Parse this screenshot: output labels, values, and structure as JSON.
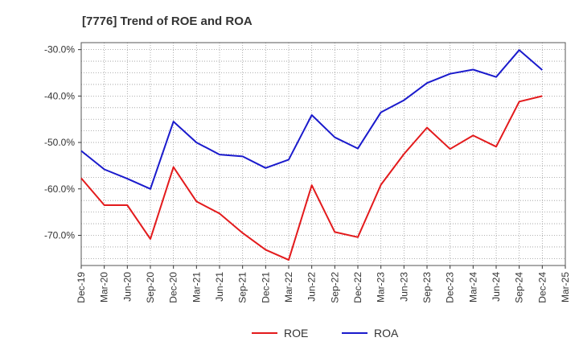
{
  "chart_data": {
    "type": "line",
    "title": "[7776]  Trend of ROE and ROA",
    "xlabel": "",
    "ylabel": "",
    "x": [
      "Dec-19",
      "Mar-20",
      "Jun-20",
      "Sep-20",
      "Dec-20",
      "Mar-21",
      "Jun-21",
      "Sep-21",
      "Dec-21",
      "Mar-22",
      "Jun-22",
      "Sep-22",
      "Dec-22",
      "Mar-23",
      "Jun-23",
      "Sep-23",
      "Dec-23",
      "Mar-24",
      "Jun-24",
      "Sep-24",
      "Dec-24"
    ],
    "x_ticks": [
      "Dec-19",
      "Mar-20",
      "Jun-20",
      "Sep-20",
      "Dec-20",
      "Mar-21",
      "Jun-21",
      "Sep-21",
      "Dec-21",
      "Mar-22",
      "Jun-22",
      "Sep-22",
      "Dec-22",
      "Mar-23",
      "Jun-23",
      "Sep-23",
      "Dec-23",
      "Mar-24",
      "Jun-24",
      "Sep-24",
      "Dec-24",
      "Mar-25"
    ],
    "y_ticks": [
      "-30.0%",
      "-40.0%",
      "-50.0%",
      "-60.0%",
      "-70.0%"
    ],
    "y_tick_values": [
      -30,
      -40,
      -50,
      -60,
      -70
    ],
    "ylim": [
      -76.5,
      -28.5
    ],
    "grid": true,
    "legend_position": "bottom",
    "series": [
      {
        "name": "ROE",
        "color": "#e31a1c",
        "values": [
          -57.7,
          -63.5,
          -63.5,
          -70.8,
          -55.3,
          -62.7,
          -65.3,
          -69.5,
          -73.1,
          -75.3,
          -59.2,
          -69.3,
          -70.4,
          -59.1,
          -52.5,
          -46.8,
          -51.4,
          -48.5,
          -50.9,
          -41.2,
          -40.0
        ]
      },
      {
        "name": "ROA",
        "color": "#1a1acc",
        "values": [
          -51.8,
          -55.8,
          -57.8,
          -60.0,
          -45.5,
          -50.0,
          -52.6,
          -53.0,
          -55.5,
          -53.7,
          -44.1,
          -48.9,
          -51.3,
          -43.5,
          -40.9,
          -37.2,
          -35.2,
          -34.3,
          -35.9,
          -30.1,
          -34.4
        ]
      }
    ]
  }
}
